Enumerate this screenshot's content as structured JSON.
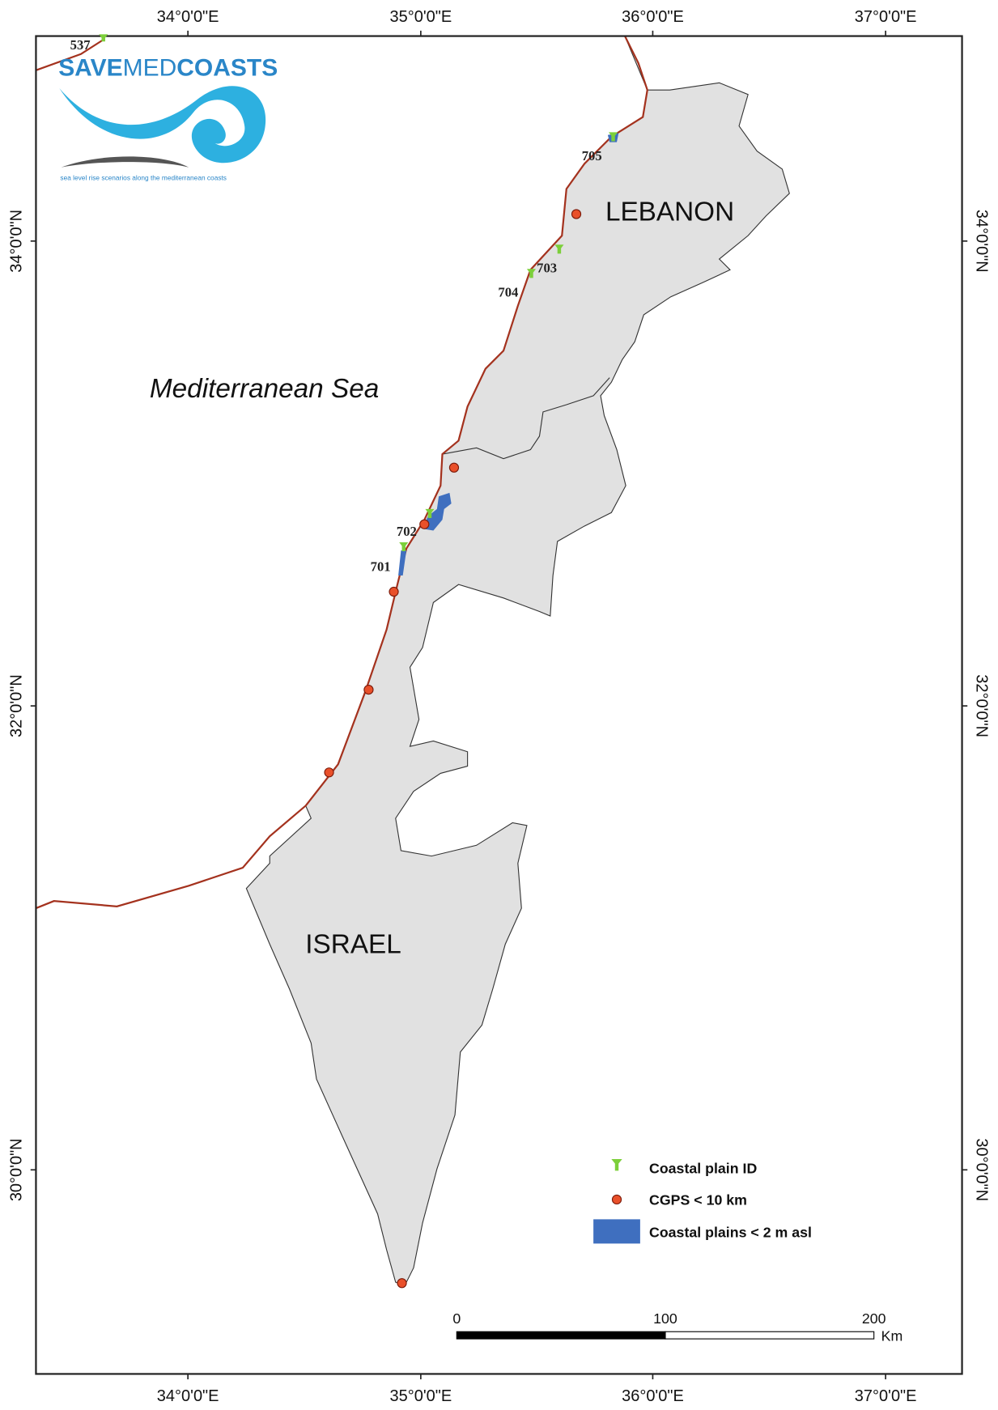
{
  "logo": {
    "save": "SAVE",
    "med": "MED",
    "coasts": "COASTS",
    "tagline": "sea level rise scenarios along the mediterranean coasts"
  },
  "graticule": {
    "top": [
      "34°0'0\"E",
      "35°0'0\"E",
      "36°0'0\"E",
      "37°0'0\"E"
    ],
    "bottom": [
      "34°0'0\"E",
      "35°0'0\"E",
      "36°0'0\"E",
      "37°0'0\"E"
    ],
    "left": [
      "34°0'0\"N",
      "32°0'0\"N",
      "30°0'0\"N"
    ],
    "right": [
      "34°0'0\"N",
      "32°0'0\"N",
      "30°0'0\"N"
    ]
  },
  "labels": {
    "sea": "Mediterranean Sea",
    "countries": [
      "LEBANON",
      "ISRAEL"
    ]
  },
  "coastal_plains": [
    "537",
    "701",
    "702",
    "703",
    "704",
    "705"
  ],
  "legend": [
    "Coastal plain ID",
    "CGPS < 10 km",
    "Coastal plains < 2 m asl"
  ],
  "scale_bar": {
    "ticks": [
      "0",
      "100",
      "200"
    ],
    "unit": "Km"
  }
}
